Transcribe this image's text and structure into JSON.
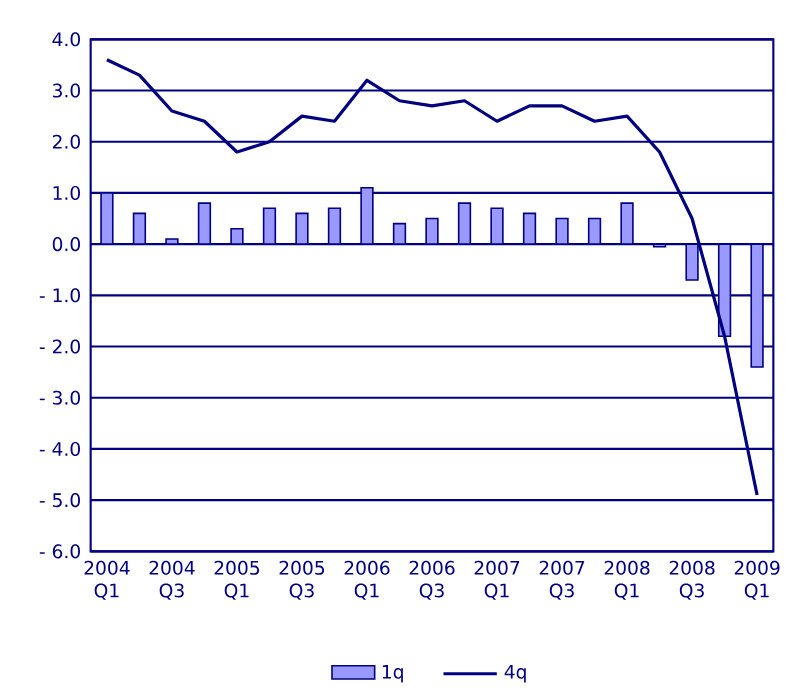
{
  "chart_data": {
    "type": "bar",
    "categories": [
      "2004 Q1",
      null,
      "2004 Q3",
      null,
      "2005 Q1",
      null,
      "2005 Q3",
      null,
      "2006 Q1",
      null,
      "2006 Q3",
      null,
      "2007 Q1",
      null,
      "2007 Q3",
      null,
      "2008 Q1",
      null,
      "2008 Q3",
      null,
      "2009 Q1"
    ],
    "series": [
      {
        "name": "1q",
        "color": "#9999ff",
        "values": [
          1.0,
          0.6,
          0.1,
          0.8,
          0.3,
          0.7,
          0.6,
          0.7,
          1.1,
          0.4,
          0.5,
          0.8,
          0.7,
          0.6,
          0.5,
          0.5,
          0.8,
          -0.05,
          -0.7,
          -1.8,
          -2.4
        ]
      },
      {
        "name": "4q",
        "type": "line",
        "color": "#000080",
        "values": [
          3.6,
          3.3,
          2.6,
          2.4,
          1.8,
          2.0,
          2.5,
          2.4,
          3.2,
          2.8,
          2.7,
          2.8,
          2.4,
          2.7,
          2.7,
          2.4,
          2.5,
          1.8,
          0.5,
          -1.8,
          -4.9
        ]
      }
    ],
    "ylim": [
      -6,
      4
    ],
    "yticks": [
      {
        "value": -6,
        "label": "- 6.0"
      },
      {
        "value": -5,
        "label": "- 5.0"
      },
      {
        "value": -4,
        "label": "- 4.0"
      },
      {
        "value": -3,
        "label": "- 3.0"
      },
      {
        "value": -2,
        "label": "- 2.0"
      },
      {
        "value": -1,
        "label": "- 1.0"
      },
      {
        "value": 0,
        "label": "0.0"
      },
      {
        "value": 1,
        "label": "1.0"
      },
      {
        "value": 2,
        "label": "2.0"
      },
      {
        "value": 3,
        "label": "3.0"
      },
      {
        "value": 4,
        "label": "4.0"
      }
    ],
    "grid": "y",
    "legend": "bottom",
    "marker": "none",
    "line_style": "solid"
  }
}
